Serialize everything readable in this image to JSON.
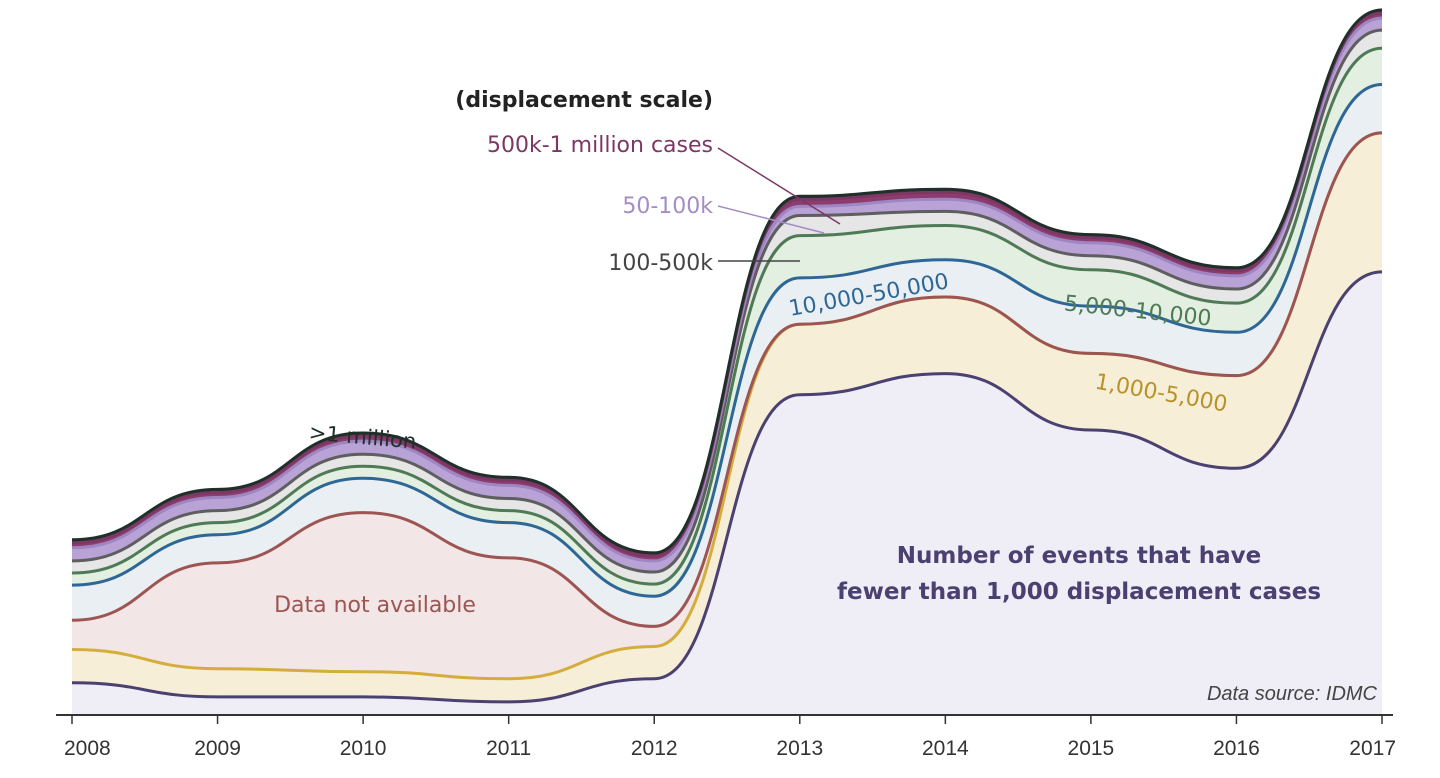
{
  "chart_data": {
    "type": "area",
    "stacked": true,
    "x": [
      2008,
      2009,
      2010,
      2011,
      2012,
      2013,
      2014,
      2015,
      2016,
      2017
    ],
    "tick_labels": [
      "2008",
      "2009",
      "2010",
      "2011",
      "2012",
      "2013",
      "2014",
      "2015",
      "2016",
      "2017"
    ],
    "y_axis_shown": false,
    "grid": false,
    "legend": "inline labels",
    "legend_title": "(displacement scale)",
    "source_note": "Data source: IDMC",
    "series": [
      {
        "name": "Number of events that have fewer than 1,000 displacement cases",
        "label_line1": "Number of events that have",
        "label_line2": "fewer than 1,000 displacement cases",
        "color": "#4a4170",
        "fill": "#efedf6",
        "values": [
          32,
          18,
          18,
          13,
          36,
          318,
          339,
          283,
          245,
          440
        ]
      },
      {
        "name": "1,000-5,000",
        "color": "#d4ad3c",
        "fill": "#f6eed6",
        "values": [
          33,
          28,
          25,
          23,
          32,
          70,
          76,
          76,
          92,
          138
        ]
      },
      {
        "name": "Data not available",
        "color": "#9c5552",
        "fill": "#f2e6e6",
        "values": [
          29,
          105,
          158,
          120,
          20,
          0,
          0,
          0,
          0,
          0
        ]
      },
      {
        "name": "10,000-50,000",
        "color": "#2e6796",
        "fill": "#eaeff4",
        "values": [
          35,
          28,
          34,
          35,
          30,
          46,
          37,
          47,
          43,
          48
        ]
      },
      {
        "name": "5,000-10,000",
        "color": "#4e7a56",
        "fill": "#e3efe1",
        "values": [
          12,
          12,
          12,
          12,
          12,
          42,
          34,
          36,
          29,
          36
        ]
      },
      {
        "name": "100-500k",
        "color": "#5e5e5e",
        "fill": "#e6e6e6",
        "values": [
          12,
          12,
          12,
          12,
          12,
          20,
          14,
          14,
          14,
          18
        ]
      },
      {
        "name": "50-100k",
        "color": "#9f86c2",
        "fill": "#b8a2d6",
        "values": [
          13,
          13,
          13,
          13,
          11,
          9,
          12,
          13,
          13,
          12
        ]
      },
      {
        "name": "500k-1 million cases",
        "color": "#7c3764",
        "fill": "#8c3d6e",
        "values": [
          5,
          5,
          5,
          5,
          5,
          7,
          7,
          5,
          5,
          5
        ]
      },
      {
        "name": "&gt;1 million",
        "display_name": ">1 million",
        "color": "#1f2f2a",
        "fill": "#22322d",
        "values": [
          3,
          3,
          3,
          3,
          3,
          3,
          3,
          3,
          3,
          3
        ]
      }
    ],
    "labels": {
      "title_legend": "(displacement scale)",
      "s500k": "500k-1 million cases",
      "s50k": "50-100k",
      "s100k": "100-500k",
      "s10k": "10,000-50,000",
      "s5k": "5,000-10,000",
      "s1k": "1,000-5,000",
      "s1m": ">1 million",
      "na": "Data not available",
      "small_line1": "Number of events that have",
      "small_line2": "fewer than 1,000 displacement cases",
      "source": "Data source: IDMC"
    }
  }
}
